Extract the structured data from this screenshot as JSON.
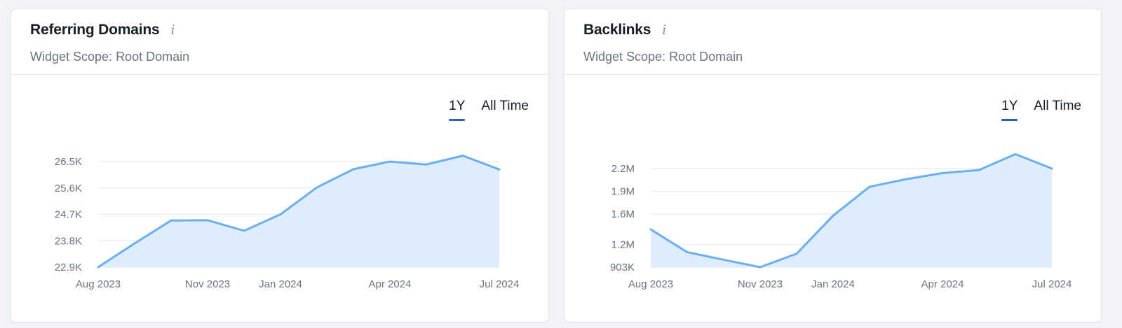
{
  "colors": {
    "line": "#6aaff2",
    "area": "#deedfb",
    "grid": "#e3e6eb",
    "tab_underline": "#2e62bf"
  },
  "widgets": [
    {
      "title": "Referring Domains",
      "info_icon": "info-icon",
      "scope": "Widget Scope: Root Domain",
      "tabs": [
        {
          "label": "1Y",
          "active": true
        },
        {
          "label": "All Time",
          "active": false
        }
      ]
    },
    {
      "title": "Backlinks",
      "info_icon": "info-icon",
      "scope": "Widget Scope: Root Domain",
      "tabs": [
        {
          "label": "1Y",
          "active": true
        },
        {
          "label": "All Time",
          "active": false
        }
      ]
    }
  ],
  "chart_data": [
    {
      "type": "area",
      "title": "Referring Domains",
      "x": [
        "Aug 2023",
        "Sep 2023",
        "Oct 2023",
        "Nov 2023",
        "Dec 2023",
        "Jan 2024",
        "Feb 2024",
        "Mar 2024",
        "Apr 2024",
        "May 2024",
        "Jun 2024",
        "Jul 2024"
      ],
      "y": [
        22900,
        23710,
        24490,
        24500,
        24140,
        24700,
        25620,
        26240,
        26500,
        26400,
        26700,
        26230
      ],
      "ylim": [
        22900,
        26500
      ],
      "yticks": [
        22900,
        23800,
        24700,
        25600,
        26500
      ],
      "ytick_labels": [
        "22.9K",
        "23.8K",
        "24.7K",
        "25.6K",
        "26.5K"
      ],
      "xtick_labels": [
        "Aug 2023",
        "Nov 2023",
        "Jan 2024",
        "Apr 2024",
        "Jul 2024"
      ],
      "xtick_index": [
        0,
        3,
        5,
        8,
        11
      ],
      "grid": true
    },
    {
      "type": "area",
      "title": "Backlinks",
      "x": [
        "Aug 2023",
        "Sep 2023",
        "Oct 2023",
        "Nov 2023",
        "Dec 2023",
        "Jan 2024",
        "Feb 2024",
        "Mar 2024",
        "Apr 2024",
        "May 2024",
        "Jun 2024",
        "Jul 2024"
      ],
      "y": [
        1400000,
        1100000,
        1000000,
        903000,
        1080000,
        1580000,
        1960000,
        2060000,
        2140000,
        2180000,
        2390000,
        2200000
      ],
      "ylim": [
        903000,
        2200000
      ],
      "yticks": [
        903000,
        1200000,
        1600000,
        1900000,
        2200000
      ],
      "ytick_labels": [
        "903K",
        "1.2M",
        "1.6M",
        "1.9M",
        "2.2M"
      ],
      "xtick_labels": [
        "Aug 2023",
        "Nov 2023",
        "Jan 2024",
        "Apr 2024",
        "Jul 2024"
      ],
      "xtick_index": [
        0,
        3,
        5,
        8,
        11
      ],
      "grid": true
    }
  ]
}
